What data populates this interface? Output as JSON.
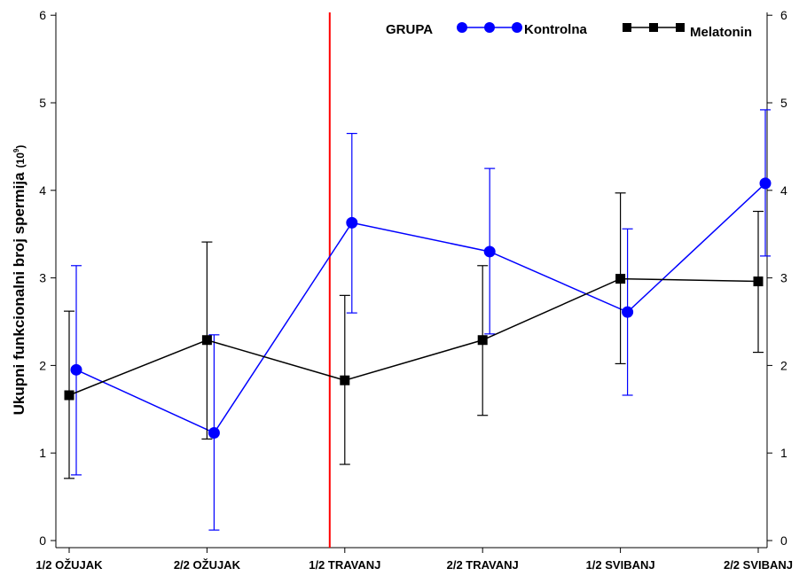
{
  "chart_data": {
    "type": "line",
    "ylabel": "Ukupni funkcionalni broj spermija",
    "ylabel_unit_base": "(10",
    "ylabel_unit_exp": "9",
    "ylabel_unit_close": ")",
    "categories": [
      "1/2 OŽUJAK",
      "2/2 OŽUJAK",
      "1/2 TRAVANJ",
      "2/2 TRAVANJ",
      "1/2 SVIBANJ",
      "2/2 SVIBANJ"
    ],
    "ylim": [
      0,
      6
    ],
    "yticks": [
      "0",
      "1",
      "2",
      "3",
      "4",
      "5",
      "6"
    ],
    "legend": {
      "title": "GRUPA",
      "position": "top-right"
    },
    "vertical_marker_category": "1/2 TRAVANJ",
    "series": [
      {
        "name": "Kontrolna",
        "color": "#0000ff",
        "marker": "circle",
        "values": [
          1.95,
          1.23,
          3.63,
          3.3,
          2.61,
          4.08
        ],
        "error_low": [
          0.75,
          0.12,
          2.6,
          2.36,
          1.66,
          3.25
        ],
        "error_high": [
          3.14,
          2.35,
          4.65,
          4.25,
          3.56,
          4.92
        ]
      },
      {
        "name": "Melatonin",
        "color": "#000000",
        "marker": "square",
        "values": [
          1.66,
          2.29,
          1.83,
          2.29,
          2.99,
          2.96
        ],
        "error_low": [
          0.71,
          1.16,
          0.87,
          1.43,
          2.02,
          2.15
        ],
        "error_high": [
          2.62,
          3.41,
          2.8,
          3.14,
          3.97,
          3.76
        ]
      }
    ],
    "marker_line_color": "#ff0000"
  }
}
